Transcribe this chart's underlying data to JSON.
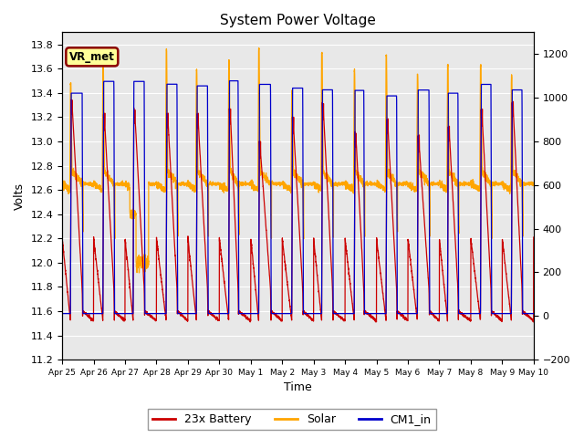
{
  "title": "System Power Voltage",
  "xlabel": "Time",
  "ylabel": "Volts",
  "ylim_left": [
    11.2,
    13.9
  ],
  "ylim_right": [
    -200,
    1300
  ],
  "yticks_left": [
    11.2,
    11.4,
    11.6,
    11.8,
    12.0,
    12.2,
    12.4,
    12.6,
    12.8,
    13.0,
    13.2,
    13.4,
    13.6,
    13.8
  ],
  "yticks_right": [
    -200,
    0,
    200,
    400,
    600,
    800,
    1000,
    1200
  ],
  "xtick_labels": [
    "Apr 25",
    "Apr 26",
    "Apr 27",
    "Apr 28",
    "Apr 29",
    "Apr 30",
    "May 1",
    "May 2",
    "May 3",
    "May 4",
    "May 5",
    "May 6",
    "May 7",
    "May 8",
    "May 9",
    "May 10"
  ],
  "annotation_text": "VR_met",
  "annotation_box_color": "#FFFF99",
  "annotation_border_color": "#8B0000",
  "background_color": "#E8E8E8",
  "grid_color": "white",
  "line_colors": {
    "battery": "#CC0000",
    "solar": "#FFA500",
    "cm1": "#0000CC"
  },
  "legend_labels": [
    "23x Battery",
    "Solar",
    "CM1_in"
  ]
}
